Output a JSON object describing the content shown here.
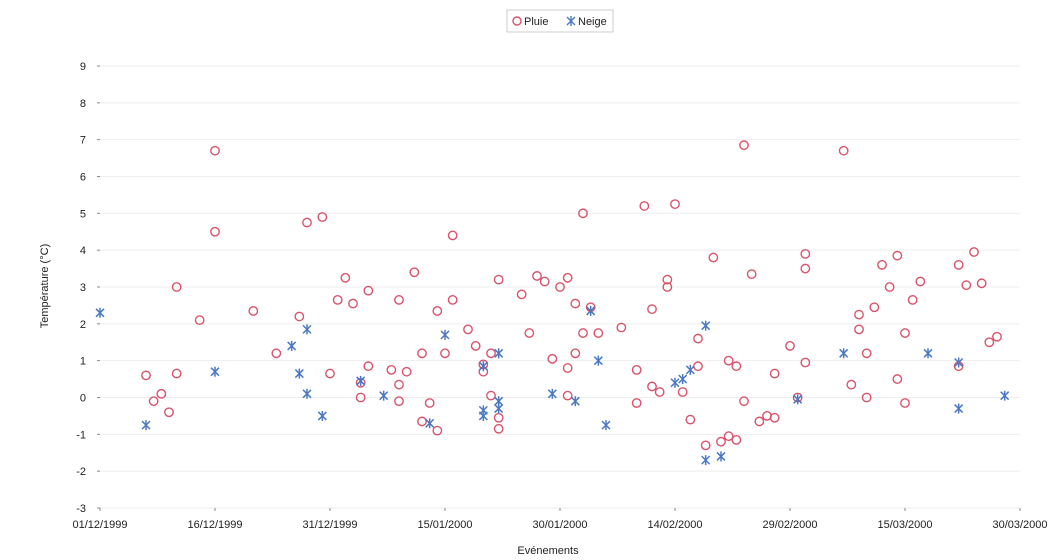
{
  "chart_data": {
    "type": "scatter",
    "title": "",
    "xlabel": "Evénements",
    "ylabel": "Température (°C)",
    "xlim": [
      "1999-12-01",
      "2000-03-30"
    ],
    "ylim": [
      -3,
      9
    ],
    "x_ticks": [
      "01/12/1999",
      "16/12/1999",
      "31/12/1999",
      "15/01/2000",
      "30/01/2000",
      "14/02/2000",
      "29/02/2000",
      "15/03/2000",
      "30/03/2000"
    ],
    "y_ticks": [
      "-3",
      "-2",
      "-1",
      "0",
      "1",
      "2",
      "3",
      "4",
      "5",
      "6",
      "7",
      "8",
      "9"
    ],
    "grid": true,
    "legend_position": "top-center",
    "series": [
      {
        "name": "Pluie",
        "marker": "circle",
        "color": "#d9536b",
        "points": [
          [
            "1999-12-07",
            0.6
          ],
          [
            "1999-12-08",
            -0.1
          ],
          [
            "1999-12-09",
            0.1
          ],
          [
            "1999-12-10",
            -0.4
          ],
          [
            "1999-12-11",
            3.0
          ],
          [
            "1999-12-11",
            0.65
          ],
          [
            "1999-12-14",
            2.1
          ],
          [
            "1999-12-16",
            6.7
          ],
          [
            "1999-12-16",
            4.5
          ],
          [
            "1999-12-21",
            2.35
          ],
          [
            "1999-12-24",
            1.2
          ],
          [
            "1999-12-27",
            2.2
          ],
          [
            "1999-12-28",
            4.75
          ],
          [
            "1999-12-30",
            4.9
          ],
          [
            "1999-12-31",
            0.65
          ],
          [
            "2000-01-01",
            2.65
          ],
          [
            "2000-01-02",
            3.25
          ],
          [
            "2000-01-03",
            2.55
          ],
          [
            "2000-01-04",
            0.4
          ],
          [
            "2000-01-04",
            0.0
          ],
          [
            "2000-01-05",
            2.9
          ],
          [
            "2000-01-05",
            0.85
          ],
          [
            "2000-01-08",
            0.75
          ],
          [
            "2000-01-09",
            2.65
          ],
          [
            "2000-01-09",
            0.35
          ],
          [
            "2000-01-09",
            -0.1
          ],
          [
            "2000-01-10",
            0.7
          ],
          [
            "2000-01-11",
            3.4
          ],
          [
            "2000-01-12",
            1.2
          ],
          [
            "2000-01-12",
            -0.65
          ],
          [
            "2000-01-13",
            -0.15
          ],
          [
            "2000-01-14",
            2.35
          ],
          [
            "2000-01-14",
            -0.9
          ],
          [
            "2000-01-15",
            1.2
          ],
          [
            "2000-01-16",
            2.65
          ],
          [
            "2000-01-16",
            4.4
          ],
          [
            "2000-01-18",
            1.85
          ],
          [
            "2000-01-19",
            1.4
          ],
          [
            "2000-01-20",
            0.9
          ],
          [
            "2000-01-20",
            0.7
          ],
          [
            "2000-01-21",
            1.2
          ],
          [
            "2000-01-21",
            0.05
          ],
          [
            "2000-01-22",
            3.2
          ],
          [
            "2000-01-22",
            -0.55
          ],
          [
            "2000-01-22",
            -0.85
          ],
          [
            "2000-01-25",
            2.8
          ],
          [
            "2000-01-26",
            1.75
          ],
          [
            "2000-01-27",
            3.3
          ],
          [
            "2000-01-28",
            3.15
          ],
          [
            "2000-01-29",
            1.05
          ],
          [
            "2000-01-30",
            3.0
          ],
          [
            "2000-01-31",
            3.25
          ],
          [
            "2000-01-31",
            0.8
          ],
          [
            "2000-01-31",
            0.05
          ],
          [
            "2000-02-01",
            2.55
          ],
          [
            "2000-02-01",
            1.2
          ],
          [
            "2000-02-02",
            5.0
          ],
          [
            "2000-02-02",
            1.75
          ],
          [
            "2000-02-03",
            2.45
          ],
          [
            "2000-02-04",
            1.75
          ],
          [
            "2000-02-07",
            1.9
          ],
          [
            "2000-02-09",
            0.75
          ],
          [
            "2000-02-09",
            -0.15
          ],
          [
            "2000-02-10",
            5.2
          ],
          [
            "2000-02-11",
            2.4
          ],
          [
            "2000-02-11",
            0.3
          ],
          [
            "2000-02-12",
            0.15
          ],
          [
            "2000-02-13",
            3.2
          ],
          [
            "2000-02-13",
            3.0
          ],
          [
            "2000-02-14",
            5.25
          ],
          [
            "2000-02-15",
            0.15
          ],
          [
            "2000-02-16",
            -0.6
          ],
          [
            "2000-02-17",
            1.6
          ],
          [
            "2000-02-17",
            0.85
          ],
          [
            "2000-02-18",
            -1.3
          ],
          [
            "2000-02-19",
            3.8
          ],
          [
            "2000-02-20",
            -1.2
          ],
          [
            "2000-02-21",
            1.0
          ],
          [
            "2000-02-21",
            -1.05
          ],
          [
            "2000-02-22",
            0.85
          ],
          [
            "2000-02-22",
            -1.15
          ],
          [
            "2000-02-23",
            6.85
          ],
          [
            "2000-02-23",
            -0.1
          ],
          [
            "2000-02-24",
            3.35
          ],
          [
            "2000-02-25",
            -0.65
          ],
          [
            "2000-02-26",
            -0.5
          ],
          [
            "2000-02-27",
            0.65
          ],
          [
            "2000-02-27",
            -0.55
          ],
          [
            "2000-02-29",
            1.4
          ],
          [
            "2000-03-01",
            0.0
          ],
          [
            "2000-03-02",
            3.9
          ],
          [
            "2000-03-02",
            3.5
          ],
          [
            "2000-03-02",
            0.95
          ],
          [
            "2000-03-07",
            6.7
          ],
          [
            "2000-03-08",
            0.35
          ],
          [
            "2000-03-09",
            2.25
          ],
          [
            "2000-03-09",
            1.85
          ],
          [
            "2000-03-10",
            1.2
          ],
          [
            "2000-03-10",
            0.0
          ],
          [
            "2000-03-11",
            2.45
          ],
          [
            "2000-03-12",
            3.6
          ],
          [
            "2000-03-13",
            3.0
          ],
          [
            "2000-03-14",
            3.85
          ],
          [
            "2000-03-14",
            0.5
          ],
          [
            "2000-03-15",
            1.75
          ],
          [
            "2000-03-15",
            -0.15
          ],
          [
            "2000-03-16",
            2.65
          ],
          [
            "2000-03-17",
            3.15
          ],
          [
            "2000-03-22",
            3.6
          ],
          [
            "2000-03-22",
            0.85
          ],
          [
            "2000-03-23",
            3.05
          ],
          [
            "2000-03-24",
            3.95
          ],
          [
            "2000-03-25",
            3.1
          ],
          [
            "2000-03-26",
            1.5
          ],
          [
            "2000-03-27",
            1.65
          ]
        ]
      },
      {
        "name": "Neige",
        "marker": "asterisk",
        "color": "#4a78c2",
        "points": [
          [
            "1999-12-01",
            2.3
          ],
          [
            "1999-12-07",
            -0.75
          ],
          [
            "1999-12-16",
            0.7
          ],
          [
            "1999-12-26",
            1.4
          ],
          [
            "1999-12-27",
            0.65
          ],
          [
            "1999-12-28",
            0.1
          ],
          [
            "1999-12-28",
            1.85
          ],
          [
            "1999-12-30",
            -0.5
          ],
          [
            "2000-01-04",
            0.45
          ],
          [
            "2000-01-07",
            0.05
          ],
          [
            "2000-01-13",
            -0.7
          ],
          [
            "2000-01-15",
            1.7
          ],
          [
            "2000-01-20",
            0.85
          ],
          [
            "2000-01-20",
            -0.35
          ],
          [
            "2000-01-20",
            -0.5
          ],
          [
            "2000-01-22",
            1.2
          ],
          [
            "2000-01-22",
            -0.1
          ],
          [
            "2000-01-22",
            -0.3
          ],
          [
            "2000-01-29",
            0.1
          ],
          [
            "2000-02-01",
            -0.1
          ],
          [
            "2000-02-03",
            2.35
          ],
          [
            "2000-02-04",
            1.0
          ],
          [
            "2000-02-05",
            -0.75
          ],
          [
            "2000-02-14",
            0.4
          ],
          [
            "2000-02-15",
            0.5
          ],
          [
            "2000-02-16",
            0.75
          ],
          [
            "2000-02-18",
            1.95
          ],
          [
            "2000-02-18",
            -1.7
          ],
          [
            "2000-02-20",
            -1.6
          ],
          [
            "2000-03-01",
            -0.05
          ],
          [
            "2000-03-07",
            1.2
          ],
          [
            "2000-03-18",
            1.2
          ],
          [
            "2000-03-22",
            0.95
          ],
          [
            "2000-03-22",
            -0.3
          ],
          [
            "2000-03-28",
            0.05
          ]
        ]
      }
    ]
  }
}
